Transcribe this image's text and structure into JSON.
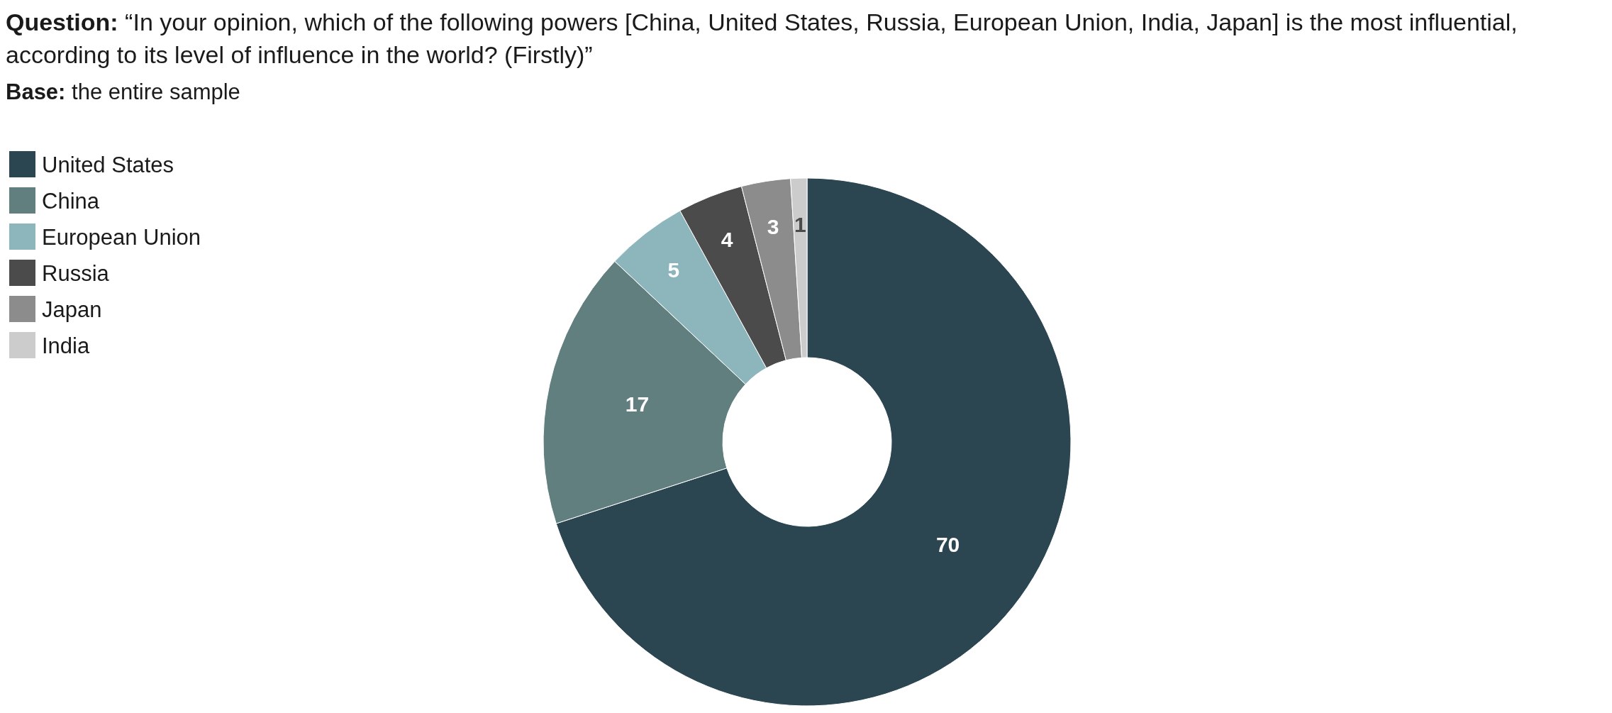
{
  "chart_data": {
    "type": "donut",
    "title": "Question: “In your opinion, which of the following powers [China, United States, Russia, European Union, India, Japan] is the most influential, according to its level of influence in the world? (Firstly)”",
    "subtitle": "Base: the entire sample",
    "categories": [
      "United States",
      "China",
      "European Union",
      "Russia",
      "Japan",
      "India"
    ],
    "values": [
      70,
      17,
      5,
      4,
      3,
      1
    ],
    "colors": [
      "#2b4650",
      "#627f80",
      "#8db5bc",
      "#4b4b4b",
      "#8c8c8c",
      "#cccccc"
    ],
    "data_labels": true,
    "legend": "left"
  }
}
